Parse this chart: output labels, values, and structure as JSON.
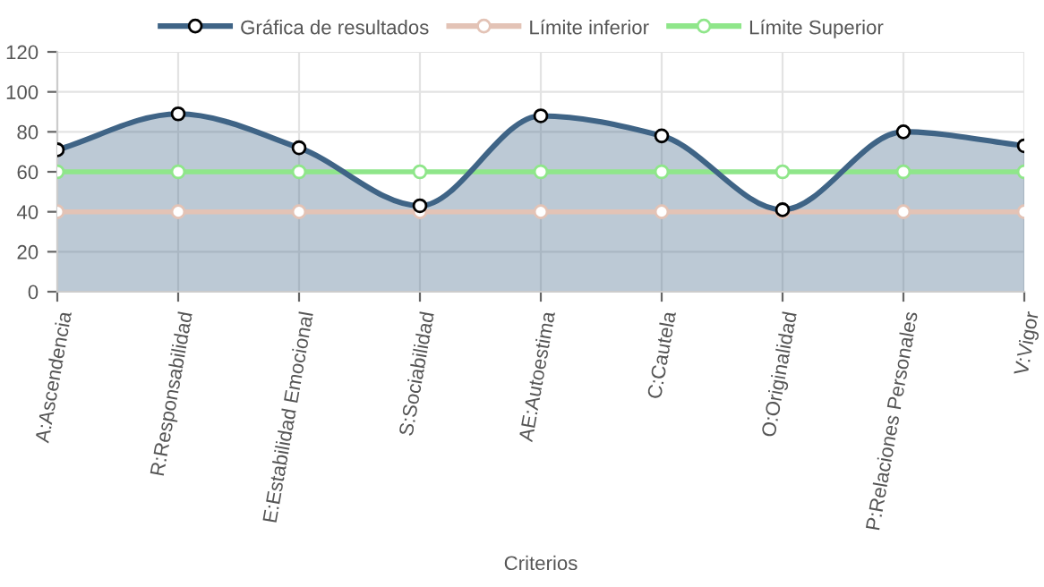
{
  "chart_data": {
    "type": "line",
    "xlabel": "Criterios",
    "categories": [
      "A:Ascendencia",
      "R:Responsabilidad",
      "E:Estabilidad Emocional",
      "S:Sociabilidad",
      "AE:Autoestima",
      "C:Cautela",
      "O:Originalidad",
      "P:Relaciones Personales",
      "V:Vigor"
    ],
    "series": [
      {
        "name": "Gráfica de resultados",
        "type": "area",
        "color": "#3f6486",
        "values": [
          71,
          89,
          72,
          43,
          88,
          78,
          41,
          80,
          73
        ]
      },
      {
        "name": "Límite inferior",
        "color": "#e3c3b6",
        "values": [
          40,
          40,
          40,
          40,
          40,
          40,
          40,
          40,
          40
        ]
      },
      {
        "name": "Límite Superior",
        "color": "#8fe68a",
        "values": [
          60,
          60,
          60,
          60,
          60,
          60,
          60,
          60,
          60
        ]
      }
    ],
    "ylim": [
      0,
      120
    ],
    "yticks": [
      0,
      20,
      40,
      60,
      80,
      100,
      120
    ],
    "grid": true,
    "legend": "top",
    "marker": "circle",
    "line_style": "solid"
  }
}
